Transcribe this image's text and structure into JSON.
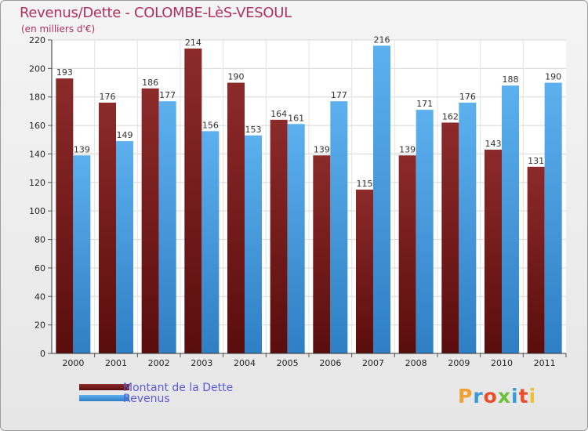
{
  "title": "Revenus/Dette - COLOMBE-LèS-VESOUL",
  "subtitle": "(en milliers d'€)",
  "logo": {
    "letters": [
      "P",
      "r",
      "o",
      "x",
      "i",
      "t",
      "i"
    ],
    "colors": [
      "#f0a030",
      "#3a9ad9",
      "#e94e2a",
      "#6bbf3a",
      "#3a9ad9",
      "#e94e2a",
      "#f0c030"
    ]
  },
  "colors": {
    "dette": "#7a1f1f",
    "revenus": "#4aa3e4",
    "title": "#b03060",
    "legend_text": "#5b5bd6"
  },
  "chart_data": {
    "type": "bar",
    "title": "Revenus/Dette - COLOMBE-LèS-VESOUL",
    "subtitle": "(en milliers d'€)",
    "categories": [
      "2000",
      "2001",
      "2002",
      "2003",
      "2004",
      "2005",
      "2006",
      "2007",
      "2008",
      "2009",
      "2010",
      "2011"
    ],
    "series": [
      {
        "name": "Montant de la Dette",
        "values": [
          193,
          176,
          186,
          214,
          190,
          164,
          139,
          115,
          139,
          162,
          143,
          131
        ]
      },
      {
        "name": "Revenus",
        "values": [
          139,
          149,
          177,
          156,
          153,
          161,
          177,
          216,
          171,
          176,
          188,
          190
        ]
      }
    ],
    "ylim": [
      0,
      220
    ],
    "yticks": [
      "0",
      "20",
      "40",
      "60",
      "80",
      "100",
      "120",
      "140",
      "160",
      "180",
      "200",
      "220"
    ],
    "grid": true,
    "legend_position": "bottom-left"
  }
}
